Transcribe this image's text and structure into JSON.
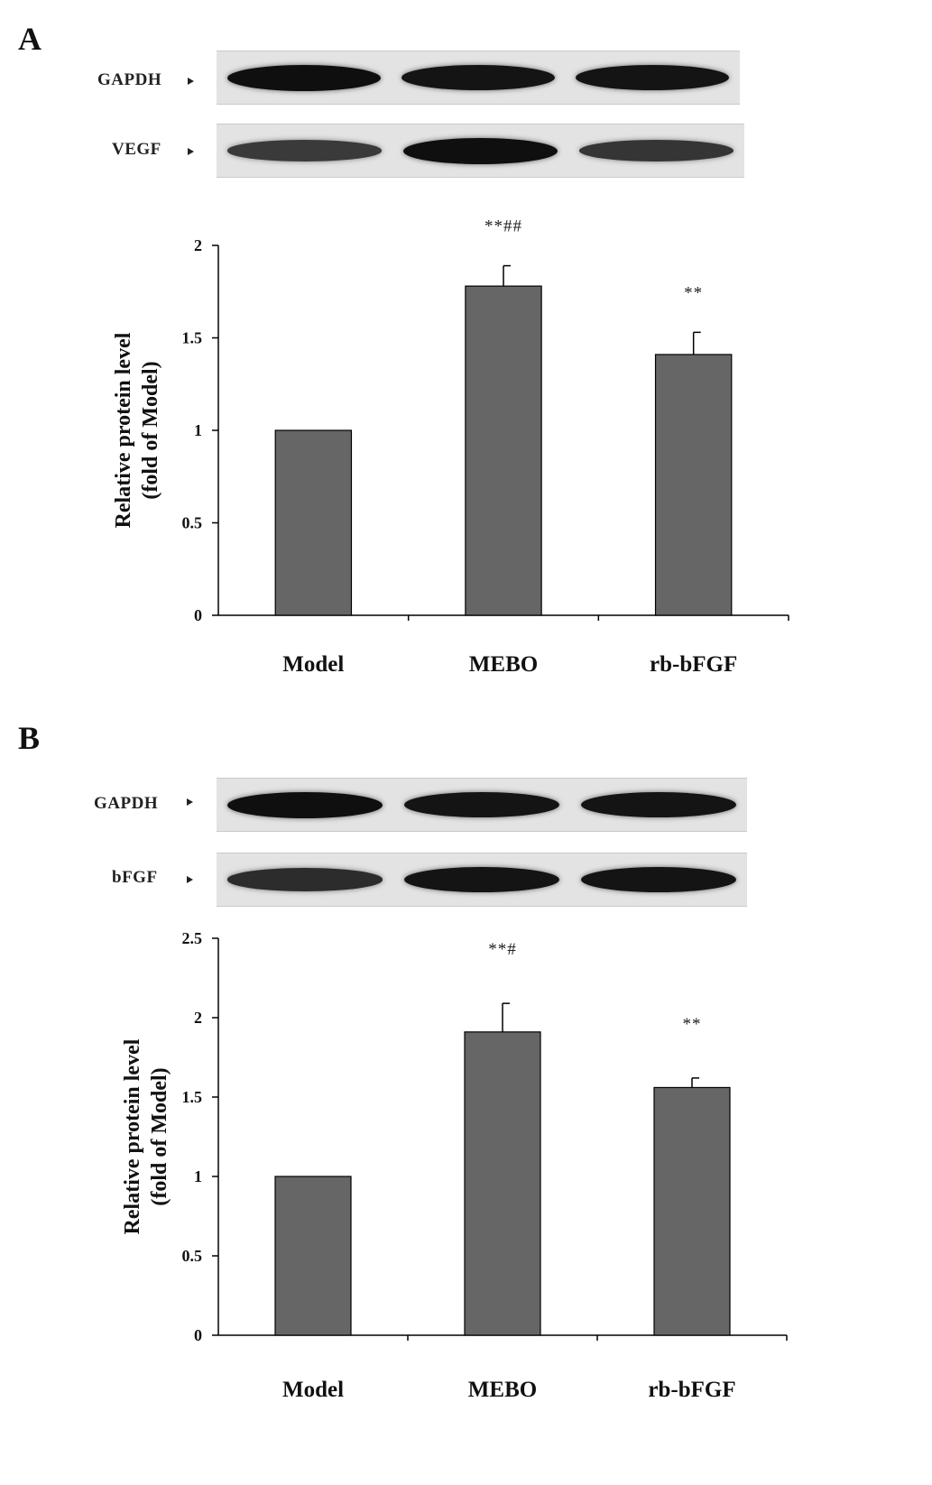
{
  "panels": [
    {
      "letter": "A",
      "blots": [
        {
          "label": "GAPDH",
          "intensities": [
            1.0,
            0.95,
            0.95
          ]
        },
        {
          "label": "VEGF",
          "intensities": [
            0.55,
            1.0,
            0.6
          ]
        }
      ]
    },
    {
      "letter": "B",
      "blots": [
        {
          "label": "GAPDH",
          "intensities": [
            1.0,
            0.95,
            0.95
          ]
        },
        {
          "label": "bFGF",
          "intensities": [
            0.7,
            0.95,
            0.95
          ]
        }
      ]
    }
  ],
  "chart_data": [
    {
      "type": "bar",
      "categories": [
        "Model",
        "MEBO",
        "rb-bFGF"
      ],
      "values": [
        1.0,
        1.78,
        1.41
      ],
      "errors": [
        0,
        0.11,
        0.12
      ],
      "annotations": [
        "",
        "**##",
        "**"
      ],
      "ylabel_lines": [
        "Relative protein level",
        "(fold of Model)"
      ],
      "ylim": [
        0,
        2
      ],
      "yticks": [
        "0",
        "0.5",
        "1",
        "1.5",
        "2"
      ],
      "bar_color": "#666666"
    },
    {
      "type": "bar",
      "categories": [
        "Model",
        "MEBO",
        "rb-bFGF"
      ],
      "values": [
        1.0,
        1.91,
        1.56
      ],
      "errors": [
        0,
        0.18,
        0.06
      ],
      "annotations": [
        "",
        "**#",
        "**"
      ],
      "ylabel_lines": [
        "Relative protein level",
        "(fold of Model)"
      ],
      "ylim": [
        0,
        2.5
      ],
      "yticks": [
        "0",
        "0.5",
        "1",
        "1.5",
        "2",
        "2.5"
      ],
      "bar_color": "#666666"
    }
  ]
}
